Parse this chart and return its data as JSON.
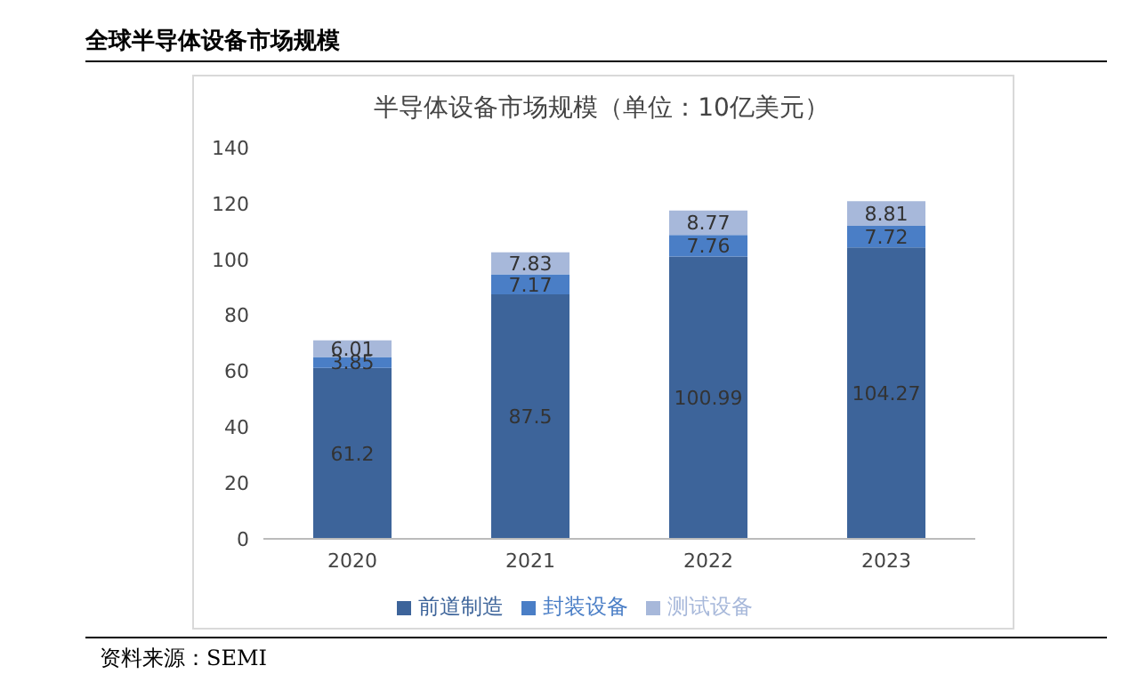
{
  "chart_data": {
    "type": "bar",
    "title": "全球半导体设备市场规模",
    "subtitle": "半导体设备市场规模（单位：10亿美元）",
    "categories": [
      "2020",
      "2021",
      "2022",
      "2023"
    ],
    "stacked": true,
    "series": [
      {
        "name": "前道制造",
        "color": "#3d649a",
        "values": [
          61.2,
          87.5,
          100.99,
          104.27
        ]
      },
      {
        "name": "封装设备",
        "color": "#4a7ec6",
        "values": [
          3.85,
          7.17,
          7.76,
          7.72
        ]
      },
      {
        "name": "测试设备",
        "color": "#a7b8da",
        "values": [
          6.01,
          7.83,
          8.77,
          8.81
        ]
      }
    ],
    "ylim": [
      0,
      140
    ],
    "yticks": [
      0,
      20,
      40,
      60,
      80,
      100,
      120,
      140
    ],
    "grid": false,
    "legend": "bottom",
    "data_labels": true,
    "annotations": [
      "资料来源：SEMI"
    ]
  }
}
